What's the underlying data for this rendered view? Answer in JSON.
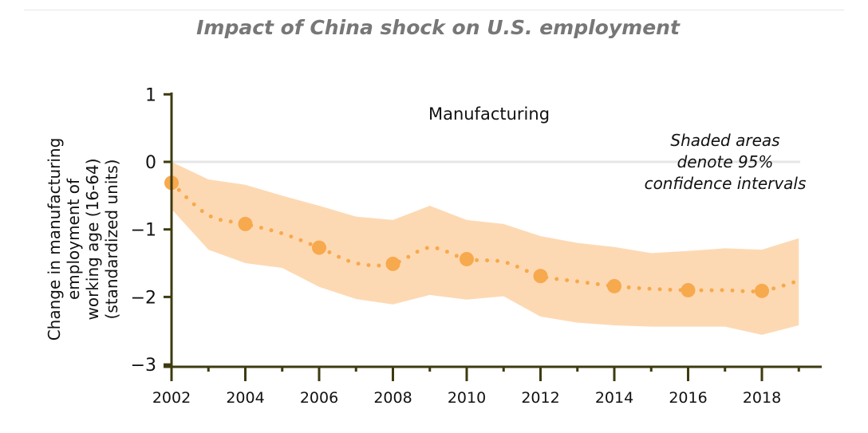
{
  "chart_data": {
    "type": "line",
    "title": "Impact of China shock on U.S. employment",
    "panel_label": "Manufacturing",
    "annotation": [
      "Shaded areas",
      "denote 95%",
      "confidence intervals"
    ],
    "ylabel": [
      "Change in manufacturing",
      "employment of",
      "working age (16-64)",
      "(standardized units)"
    ],
    "xlabel": "",
    "xlim": [
      2002,
      2019
    ],
    "ylim": [
      -3,
      1
    ],
    "x_ticks": [
      2002,
      2004,
      2006,
      2008,
      2010,
      2012,
      2014,
      2016,
      2018
    ],
    "x_tick_labels": [
      "2002",
      "2004",
      "2006",
      "2008",
      "2010",
      "2012",
      "2014",
      "2016",
      "2018"
    ],
    "y_ticks": [
      1,
      0,
      -1,
      -2,
      -3
    ],
    "y_tick_labels": [
      "1",
      "0",
      "−1",
      "−2",
      "−3"
    ],
    "grid": "zero line only",
    "series": [
      {
        "name": "Estimate",
        "color": "#f7a94d",
        "x": [
          2002,
          2003,
          2004,
          2005,
          2006,
          2007,
          2008,
          2009,
          2010,
          2011,
          2012,
          2013,
          2014,
          2015,
          2016,
          2017,
          2018,
          2019
        ],
        "y": [
          -0.31,
          -0.79,
          -0.92,
          -1.06,
          -1.27,
          -1.5,
          -1.51,
          -1.27,
          -1.44,
          -1.48,
          -1.69,
          -1.77,
          -1.84,
          -1.88,
          -1.9,
          -1.9,
          -1.91,
          -1.76
        ],
        "marker_years": [
          2002,
          2004,
          2006,
          2008,
          2010,
          2012,
          2014,
          2016,
          2018
        ]
      }
    ],
    "ci_upper": [
      0,
      -0.26,
      -0.34,
      -0.5,
      -0.65,
      -0.81,
      -0.86,
      -0.65,
      -0.86,
      -0.92,
      -1.1,
      -1.2,
      -1.26,
      -1.35,
      -1.32,
      -1.28,
      -1.3,
      -1.13
    ],
    "ci_lower": [
      -0.7,
      -1.3,
      -1.5,
      -1.57,
      -1.85,
      -2.03,
      -2.11,
      -1.97,
      -2.04,
      -1.99,
      -2.29,
      -2.38,
      -2.42,
      -2.44,
      -2.44,
      -2.44,
      -2.56,
      -2.42
    ],
    "colors": {
      "band": "#fdd9b3",
      "line": "#f7a94d",
      "axis": "#3d3b10",
      "zero": "#e6e6e6"
    }
  }
}
